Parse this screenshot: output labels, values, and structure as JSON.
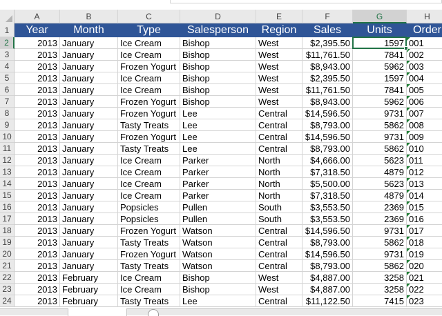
{
  "columns": [
    "A",
    "B",
    "C",
    "D",
    "E",
    "F",
    "G",
    "H"
  ],
  "selected_column": "G",
  "selected_row": "2",
  "headers": [
    "Year",
    "Month",
    "Type",
    "Salesperson",
    "Region",
    "Sales",
    "Units",
    "Order"
  ],
  "rows": [
    {
      "num": "2",
      "year": "2013",
      "month": "January",
      "type": "Ice Cream",
      "sp": "Bishop",
      "region": "West",
      "sales": "$2,395.50",
      "units": "1597",
      "order": "001"
    },
    {
      "num": "3",
      "year": "2013",
      "month": "January",
      "type": "Ice Cream",
      "sp": "Bishop",
      "region": "West",
      "sales": "$11,761.50",
      "units": "7841",
      "order": "002"
    },
    {
      "num": "4",
      "year": "2013",
      "month": "January",
      "type": "Frozen Yogurt",
      "sp": "Bishop",
      "region": "West",
      "sales": "$8,943.00",
      "units": "5962",
      "order": "003"
    },
    {
      "num": "5",
      "year": "2013",
      "month": "January",
      "type": "Ice Cream",
      "sp": "Bishop",
      "region": "West",
      "sales": "$2,395.50",
      "units": "1597",
      "order": "004"
    },
    {
      "num": "6",
      "year": "2013",
      "month": "January",
      "type": "Ice Cream",
      "sp": "Bishop",
      "region": "West",
      "sales": "$11,761.50",
      "units": "7841",
      "order": "005"
    },
    {
      "num": "7",
      "year": "2013",
      "month": "January",
      "type": "Frozen Yogurt",
      "sp": "Bishop",
      "region": "West",
      "sales": "$8,943.00",
      "units": "5962",
      "order": "006"
    },
    {
      "num": "8",
      "year": "2013",
      "month": "January",
      "type": "Frozen Yogurt",
      "sp": "Lee",
      "region": "Central",
      "sales": "$14,596.50",
      "units": "9731",
      "order": "007"
    },
    {
      "num": "9",
      "year": "2013",
      "month": "January",
      "type": "Tasty Treats",
      "sp": "Lee",
      "region": "Central",
      "sales": "$8,793.00",
      "units": "5862",
      "order": "008"
    },
    {
      "num": "10",
      "year": "2013",
      "month": "January",
      "type": "Frozen Yogurt",
      "sp": "Lee",
      "region": "Central",
      "sales": "$14,596.50",
      "units": "9731",
      "order": "009"
    },
    {
      "num": "11",
      "year": "2013",
      "month": "January",
      "type": "Tasty Treats",
      "sp": "Lee",
      "region": "Central",
      "sales": "$8,793.00",
      "units": "5862",
      "order": "010"
    },
    {
      "num": "12",
      "year": "2013",
      "month": "January",
      "type": "Ice Cream",
      "sp": "Parker",
      "region": "North",
      "sales": "$4,666.00",
      "units": "5623",
      "order": "011"
    },
    {
      "num": "13",
      "year": "2013",
      "month": "January",
      "type": "Ice Cream",
      "sp": "Parker",
      "region": "North",
      "sales": "$7,318.50",
      "units": "4879",
      "order": "012"
    },
    {
      "num": "14",
      "year": "2013",
      "month": "January",
      "type": "Ice Cream",
      "sp": "Parker",
      "region": "North",
      "sales": "$5,500.00",
      "units": "5623",
      "order": "013"
    },
    {
      "num": "15",
      "year": "2013",
      "month": "January",
      "type": "Ice Cream",
      "sp": "Parker",
      "region": "North",
      "sales": "$7,318.50",
      "units": "4879",
      "order": "014"
    },
    {
      "num": "16",
      "year": "2013",
      "month": "January",
      "type": "Popsicles",
      "sp": "Pullen",
      "region": "South",
      "sales": "$3,553.50",
      "units": "2369",
      "order": "015"
    },
    {
      "num": "17",
      "year": "2013",
      "month": "January",
      "type": "Popsicles",
      "sp": "Pullen",
      "region": "South",
      "sales": "$3,553.50",
      "units": "2369",
      "order": "016"
    },
    {
      "num": "18",
      "year": "2013",
      "month": "January",
      "type": "Frozen Yogurt",
      "sp": "Watson",
      "region": "Central",
      "sales": "$14,596.50",
      "units": "9731",
      "order": "017"
    },
    {
      "num": "19",
      "year": "2013",
      "month": "January",
      "type": "Tasty Treats",
      "sp": "Watson",
      "region": "Central",
      "sales": "$8,793.00",
      "units": "5862",
      "order": "018"
    },
    {
      "num": "20",
      "year": "2013",
      "month": "January",
      "type": "Frozen Yogurt",
      "sp": "Watson",
      "region": "Central",
      "sales": "$14,596.50",
      "units": "9731",
      "order": "019"
    },
    {
      "num": "21",
      "year": "2013",
      "month": "January",
      "type": "Tasty Treats",
      "sp": "Watson",
      "region": "Central",
      "sales": "$8,793.00",
      "units": "5862",
      "order": "020"
    },
    {
      "num": "22",
      "year": "2013",
      "month": "February",
      "type": "Ice Cream",
      "sp": "Bishop",
      "region": "West",
      "sales": "$4,887.00",
      "units": "3258",
      "order": "021"
    },
    {
      "num": "23",
      "year": "2013",
      "month": "February",
      "type": "Ice Cream",
      "sp": "Bishop",
      "region": "West",
      "sales": "$4,887.00",
      "units": "3258",
      "order": "022"
    },
    {
      "num": "24",
      "year": "2013",
      "month": "February",
      "type": "Tasty Treats",
      "sp": "Lee",
      "region": "Central",
      "sales": "$11,122.50",
      "units": "7415",
      "order": "023"
    }
  ],
  "colors": {
    "header_fill": "#2f5597",
    "header_text": "#ffffff",
    "selection": "#217346",
    "error_flag": "#1e7e34"
  }
}
